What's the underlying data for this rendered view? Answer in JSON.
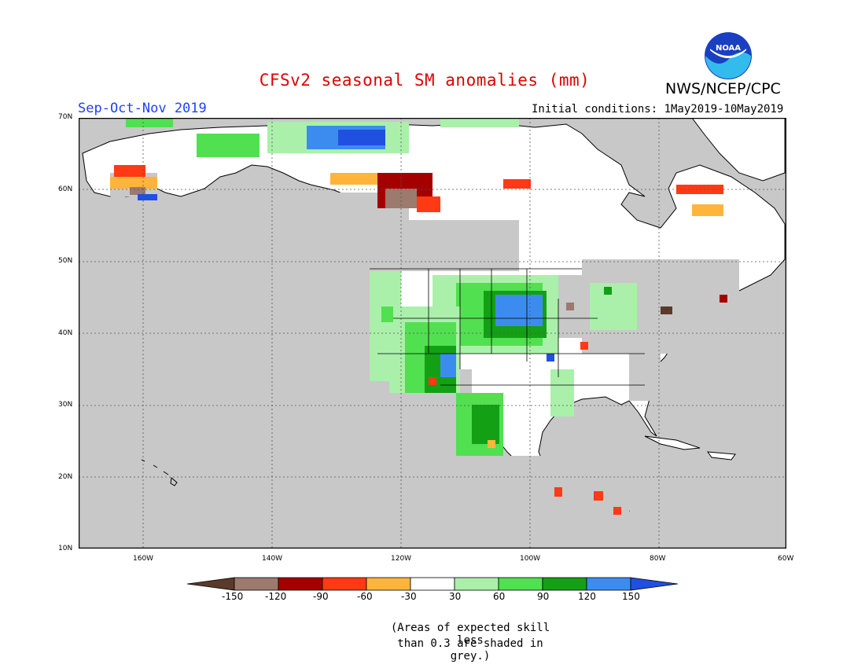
{
  "title": "CFSv2 seasonal SM anomalies (mm)",
  "season": "Sep-Oct-Nov 2019",
  "initial_conditions": "Initial conditions: 1May2019-10May2019",
  "agency": "NWS/NCEP/CPC",
  "logo_text": "NOAA",
  "note_line1": "(Areas of expected skill less",
  "note_line2": "than 0.3 are shaded in grey.)",
  "lat_labels": [
    "70N",
    "60N",
    "50N",
    "40N",
    "30N",
    "20N",
    "10N"
  ],
  "lon_labels": [
    "160W",
    "140W",
    "120W",
    "100W",
    "80W",
    "60W"
  ],
  "colorbar": {
    "labels": [
      "-150",
      "-120",
      "-90",
      "-60",
      "-30",
      "30",
      "60",
      "90",
      "120",
      "150"
    ],
    "colors": [
      "#5a3a2a",
      "#9c7a6e",
      "#a50000",
      "#ff3a14",
      "#ffb43c",
      "#ffffff",
      "#aaf0aa",
      "#50e050",
      "#14a014",
      "#3c8cf0",
      "#2050e0"
    ]
  },
  "colors": {
    "background_grey": "#c8c8c8",
    "land_white": "#ffffff",
    "title_red": "#e00000",
    "season_blue": "#2040ff"
  }
}
